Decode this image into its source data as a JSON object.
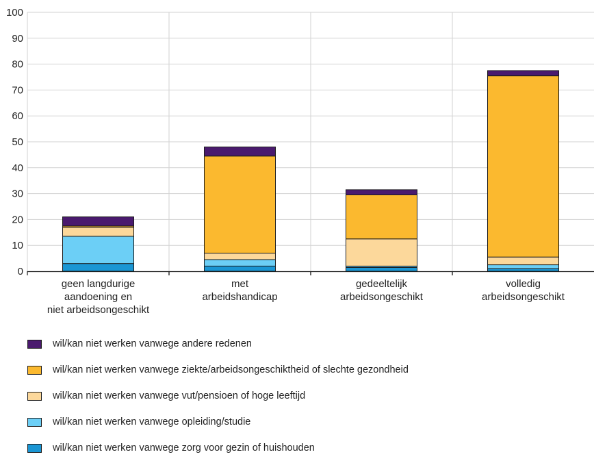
{
  "chart_data": {
    "type": "bar",
    "stacked": true,
    "ylim": [
      0,
      100
    ],
    "yticks": [
      0,
      10,
      20,
      30,
      40,
      50,
      60,
      70,
      80,
      90,
      100
    ],
    "grid": true,
    "legend_position": "bottom",
    "categories": [
      [
        "geen langdurige",
        "aandoening en",
        "niet arbeidsongeschikt"
      ],
      [
        "met",
        "arbeidshandicap"
      ],
      [
        "gedeeltelijk",
        "arbeidsongeschikt"
      ],
      [
        "volledig",
        "arbeidsongeschikt"
      ]
    ],
    "series": [
      {
        "name": "wil/kan niet werken vanwege zorg voor gezin of huishouden",
        "color": "#1a96d4",
        "values": [
          3,
          2,
          1.5,
          1
        ]
      },
      {
        "name": "wil/kan niet werken vanwege opleiding/studie",
        "color": "#6ccff6",
        "values": [
          10.5,
          2.5,
          0.5,
          1.5
        ]
      },
      {
        "name": "wil/kan niet werken vanwege vut/pensioen of hoge leeftijd",
        "color": "#fcd89b",
        "values": [
          3.5,
          2.5,
          10.5,
          3
        ]
      },
      {
        "name": "wil/kan niet werken vanwege ziekte/arbeidsongeschiktheid of slechte gezondheid",
        "color": "#fbb92f",
        "values": [
          0.5,
          37.5,
          17,
          70
        ]
      },
      {
        "name": "wil/kan niet werken vanwege andere redenen",
        "color": "#4a1a6e",
        "values": [
          3.5,
          3.5,
          2,
          2
        ]
      }
    ],
    "legend_order": [
      4,
      3,
      2,
      1,
      0
    ]
  }
}
